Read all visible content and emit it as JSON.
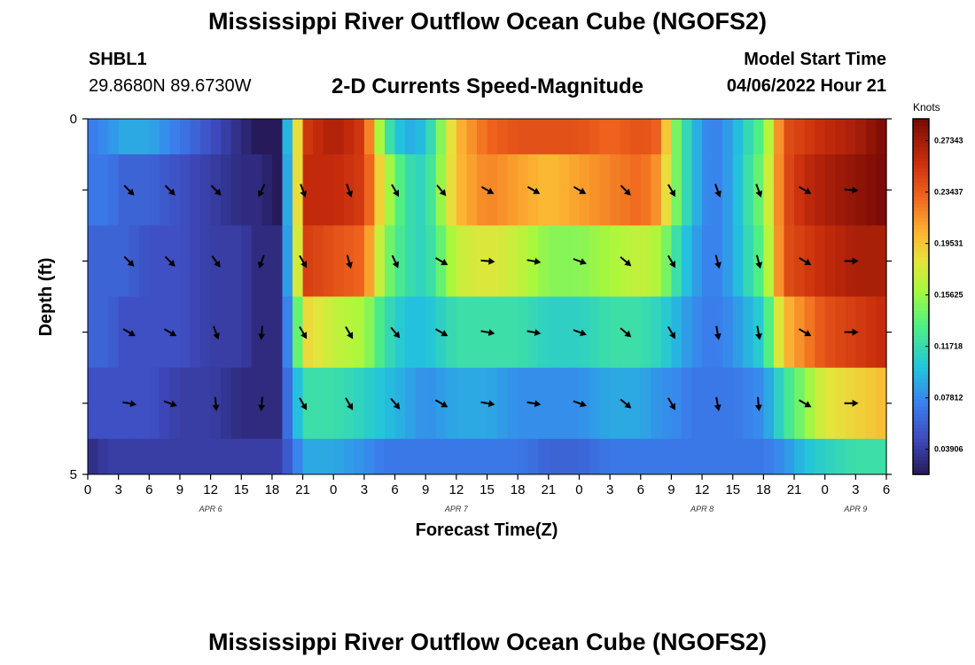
{
  "title": "Mississippi River Outflow Ocean Cube (NGOFS2)",
  "station": {
    "id": "SHBL1",
    "coords": "29.8680N  89.6730W"
  },
  "model_start": {
    "label": "Model Start Time",
    "value": "04/06/2022 Hour 21"
  },
  "chart_title": "2-D Currents Speed-Magnitude",
  "second_title": "Mississippi River Outflow Ocean Cube (NGOFS2)",
  "colorbar": {
    "unit": "Knots",
    "min": 0.02,
    "max": 0.29,
    "ticks": [
      0.03906,
      0.07812,
      0.11718,
      0.15625,
      0.19531,
      0.23437,
      0.27343
    ],
    "tick_labels": [
      "0.03906",
      "0.07812",
      "0.11718",
      "0.15625",
      "0.19531",
      "0.23437",
      "0.27343"
    ]
  },
  "chart_data": {
    "type": "heatmap",
    "title": "2-D Currents Speed-Magnitude",
    "xlabel": "Forecast Time(Z)",
    "ylabel": "Depth (ft)",
    "xlim": [
      0,
      78
    ],
    "ylim": [
      5,
      0
    ],
    "x_tick_values": [
      0,
      3,
      6,
      9,
      12,
      15,
      18,
      21,
      24,
      27,
      30,
      33,
      36,
      39,
      42,
      45,
      48,
      51,
      54,
      57,
      60,
      63,
      66,
      69,
      72,
      75,
      78
    ],
    "x_tick_labels": [
      "0",
      "3",
      "6",
      "9",
      "12",
      "15",
      "18",
      "21",
      "0",
      "3",
      "6",
      "9",
      "12",
      "15",
      "18",
      "21",
      "0",
      "3",
      "6",
      "9",
      "12",
      "15",
      "18",
      "21",
      "0",
      "3",
      "6"
    ],
    "y_tick_labels": [
      "0",
      "5"
    ],
    "date_labels": [
      {
        "x": 12,
        "text": "APR 6"
      },
      {
        "x": 36,
        "text": "APR 7"
      },
      {
        "x": 60,
        "text": "APR 8"
      },
      {
        "x": 75,
        "text": "APR 9"
      }
    ],
    "time_keys": [
      0,
      2,
      3.5,
      6,
      9,
      12,
      15,
      16.5,
      18.5,
      19,
      20,
      21,
      24,
      27,
      29,
      31,
      33,
      36,
      39,
      42,
      45,
      48,
      51,
      54,
      56,
      57,
      59,
      61,
      63,
      66,
      68,
      70,
      72,
      75,
      78
    ],
    "layers": [
      {
        "depth_range": [
          0,
          0.5
        ],
        "speed_knots": [
          0.07,
          0.08,
          0.09,
          0.09,
          0.07,
          0.05,
          0.03,
          0.02,
          0.02,
          0.07,
          0.12,
          0.25,
          0.27,
          0.25,
          0.13,
          0.09,
          0.1,
          0.2,
          0.23,
          0.24,
          0.24,
          0.24,
          0.23,
          0.24,
          0.23,
          0.16,
          0.1,
          0.07,
          0.09,
          0.14,
          0.24,
          0.25,
          0.26,
          0.27,
          0.29
        ]
      },
      {
        "depth_range": [
          0.5,
          1.5
        ],
        "speed_knots": [
          0.07,
          0.07,
          0.06,
          0.06,
          0.05,
          0.04,
          0.03,
          0.03,
          0.02,
          0.07,
          0.11,
          0.26,
          0.26,
          0.25,
          0.17,
          0.12,
          0.11,
          0.2,
          0.22,
          0.21,
          0.2,
          0.21,
          0.22,
          0.23,
          0.21,
          0.16,
          0.1,
          0.07,
          0.09,
          0.15,
          0.24,
          0.26,
          0.27,
          0.28,
          0.29
        ]
      },
      {
        "depth_range": [
          1.5,
          2.5
        ],
        "speed_knots": [
          0.06,
          0.06,
          0.06,
          0.05,
          0.05,
          0.04,
          0.04,
          0.03,
          0.03,
          0.07,
          0.1,
          0.25,
          0.24,
          0.23,
          0.15,
          0.12,
          0.11,
          0.17,
          0.18,
          0.17,
          0.15,
          0.15,
          0.16,
          0.17,
          0.16,
          0.13,
          0.09,
          0.07,
          0.09,
          0.14,
          0.24,
          0.25,
          0.26,
          0.27,
          0.27
        ]
      },
      {
        "depth_range": [
          2.5,
          3.5
        ],
        "speed_knots": [
          0.06,
          0.06,
          0.05,
          0.05,
          0.05,
          0.04,
          0.04,
          0.03,
          0.03,
          0.06,
          0.09,
          0.19,
          0.17,
          0.16,
          0.12,
          0.1,
          0.1,
          0.12,
          0.12,
          0.12,
          0.11,
          0.11,
          0.12,
          0.12,
          0.11,
          0.1,
          0.08,
          0.07,
          0.08,
          0.11,
          0.2,
          0.22,
          0.24,
          0.25,
          0.26
        ]
      },
      {
        "depth_range": [
          3.5,
          4.5
        ],
        "speed_knots": [
          0.05,
          0.05,
          0.05,
          0.05,
          0.04,
          0.04,
          0.03,
          0.03,
          0.03,
          0.05,
          0.08,
          0.12,
          0.12,
          0.11,
          0.1,
          0.09,
          0.08,
          0.09,
          0.09,
          0.08,
          0.08,
          0.08,
          0.09,
          0.09,
          0.08,
          0.08,
          0.07,
          0.07,
          0.07,
          0.08,
          0.12,
          0.15,
          0.18,
          0.19,
          0.2
        ]
      },
      {
        "depth_range": [
          4.5,
          5
        ],
        "speed_knots": [
          0.03,
          0.04,
          0.04,
          0.04,
          0.04,
          0.04,
          0.04,
          0.04,
          0.04,
          0.05,
          0.06,
          0.09,
          0.09,
          0.08,
          0.07,
          0.07,
          0.07,
          0.07,
          0.07,
          0.07,
          0.06,
          0.06,
          0.07,
          0.07,
          0.07,
          0.07,
          0.07,
          0.07,
          0.07,
          0.07,
          0.08,
          0.1,
          0.11,
          0.12,
          0.12
        ]
      }
    ],
    "vector_times": [
      4,
      8,
      12.5,
      17,
      21,
      25.5,
      30,
      34.5,
      39,
      43.5,
      48,
      52.5,
      57,
      61.5,
      65.5,
      70,
      74.5
    ],
    "vector_depths": [
      1,
      2,
      3,
      4
    ],
    "vector_direction_deg": [
      [
        135,
        135,
        135,
        205,
        160,
        160,
        150,
        140,
        120,
        120,
        120,
        135,
        150,
        160,
        160,
        120,
        95
      ],
      [
        135,
        135,
        145,
        200,
        150,
        165,
        155,
        120,
        95,
        100,
        110,
        130,
        150,
        165,
        165,
        120,
        90
      ],
      [
        120,
        120,
        160,
        185,
        150,
        150,
        140,
        120,
        100,
        100,
        110,
        130,
        150,
        170,
        170,
        120,
        90
      ],
      [
        100,
        110,
        175,
        185,
        150,
        150,
        140,
        120,
        100,
        100,
        110,
        130,
        150,
        170,
        175,
        120,
        90
      ]
    ]
  }
}
